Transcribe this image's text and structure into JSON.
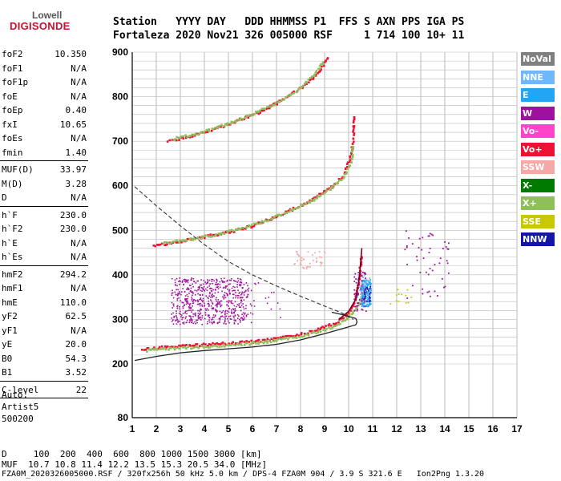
{
  "logo": {
    "top": "Lowell",
    "bottom": "DIGISONDE"
  },
  "header": {
    "line1": "Station   YYYY DAY   DDD HHMMSS P1  FFS S AXN PPS IGA PS",
    "line2": "Fortaleza 2020 Nov21 326 005000 RSF     1 714 100 10+ 11"
  },
  "params_group1": [
    {
      "key": "foF2",
      "value": "10.350"
    },
    {
      "key": "foF1",
      "value": "N/A"
    },
    {
      "key": "foF1p",
      "value": "N/A"
    },
    {
      "key": "foE",
      "value": "N/A"
    },
    {
      "key": "foEp",
      "value": "0.40"
    },
    {
      "key": "fxI",
      "value": "10.65"
    },
    {
      "key": "foEs",
      "value": "N/A"
    },
    {
      "key": "fmin",
      "value": "1.40"
    }
  ],
  "params_group2": [
    {
      "key": "MUF(D)",
      "value": "33.97"
    },
    {
      "key": "M(D)",
      "value": "3.28"
    },
    {
      "key": "D",
      "value": "N/A"
    }
  ],
  "params_group3": [
    {
      "key": "h`F",
      "value": "230.0"
    },
    {
      "key": "h`F2",
      "value": "230.0"
    },
    {
      "key": "h`E",
      "value": "N/A"
    },
    {
      "key": "h`Es",
      "value": "N/A"
    }
  ],
  "params_group4": [
    {
      "key": "hmF2",
      "value": "294.2"
    },
    {
      "key": "hmF1",
      "value": "N/A"
    },
    {
      "key": "hmE",
      "value": "110.0"
    },
    {
      "key": "yF2",
      "value": "62.5"
    },
    {
      "key": "yF1",
      "value": "N/A"
    },
    {
      "key": "yE",
      "value": "20.0"
    },
    {
      "key": "B0",
      "value": "54.3"
    },
    {
      "key": "B1",
      "value": "3.52"
    }
  ],
  "clevel": {
    "key": "C-level",
    "value": "22"
  },
  "auto": {
    "line1": "Auto:",
    "line2": "Artist5",
    "line3": "500200"
  },
  "footer": {
    "d_line": "D     100  200  400  600  800 1000 1500 3000 [km]",
    "muf_line": "MUF  10.7 10.8 11.4 12.2 13.5 15.3 20.5 34.0 [MHz]",
    "file_line": "FZA0M_2020326005000.RSF / 320fx256h 50 kHz 5.0 km / DPS-4 FZA0M 904 / 3.9 S 321.6 E   Ion2Png 1.3.20"
  },
  "legend": [
    {
      "label": "NoVal",
      "color": "#808080"
    },
    {
      "label": "NNE",
      "color": "#6fb7ff"
    },
    {
      "label": "E",
      "color": "#22a5f5"
    },
    {
      "label": "W",
      "color": "#a0109e"
    },
    {
      "label": "Vo-",
      "color": "#ff44cc"
    },
    {
      "label": "Vo+",
      "color": "#ee1133"
    },
    {
      "label": "SSW",
      "color": "#f5a8a8"
    },
    {
      "label": "X-",
      "color": "#007a00"
    },
    {
      "label": "X+",
      "color": "#8fbf5a"
    },
    {
      "label": "SSE",
      "color": "#c8c800"
    },
    {
      "label": "NNW",
      "color": "#1515aa"
    }
  ],
  "chart_data": {
    "type": "scatter",
    "xlim": [
      1,
      17
    ],
    "ylim": [
      80,
      900
    ],
    "x_ticks": [
      1,
      2,
      3,
      4,
      5,
      6,
      7,
      8,
      9,
      10,
      11,
      12,
      13,
      14,
      15,
      16,
      17
    ],
    "y_ticks": [
      80,
      200,
      300,
      400,
      500,
      600,
      700,
      800,
      900
    ],
    "grid": true,
    "legend_placement": "right",
    "traces": [
      {
        "name": "Vo+",
        "color": "#ee1133",
        "points": [
          [
            1.4,
            232
          ],
          [
            2,
            236
          ],
          [
            3,
            240
          ],
          [
            4,
            243
          ],
          [
            5,
            246
          ],
          [
            6,
            250
          ],
          [
            7,
            256
          ],
          [
            8,
            266
          ],
          [
            8.8,
            278
          ],
          [
            9.5,
            292
          ],
          [
            10,
            312
          ],
          [
            10.3,
            345
          ],
          [
            10.45,
            395
          ],
          [
            10.55,
            445
          ]
        ]
      },
      {
        "name": "X+",
        "color": "#8fbf5a",
        "points": [
          [
            1.6,
            230
          ],
          [
            2.5,
            234
          ],
          [
            3.5,
            237
          ],
          [
            4.5,
            240
          ],
          [
            5.5,
            244
          ],
          [
            6.5,
            249
          ],
          [
            7.5,
            257
          ],
          [
            8.5,
            268
          ],
          [
            9.3,
            282
          ],
          [
            9.9,
            300
          ],
          [
            10.35,
            325
          ],
          [
            10.65,
            365
          ]
        ]
      },
      {
        "name": "Vo+",
        "color": "#ee1133",
        "points": [
          [
            1.9,
            465
          ],
          [
            3,
            475
          ],
          [
            4,
            485
          ],
          [
            5,
            495
          ],
          [
            6,
            510
          ],
          [
            7,
            530
          ],
          [
            8,
            555
          ],
          [
            8.8,
            580
          ],
          [
            9.4,
            600
          ],
          [
            9.8,
            625
          ],
          [
            10.05,
            660
          ],
          [
            10.2,
            700
          ],
          [
            10.25,
            760
          ]
        ]
      },
      {
        "name": "X+",
        "color": "#8fbf5a",
        "points": [
          [
            2.3,
            470
          ],
          [
            3.5,
            480
          ],
          [
            4.5,
            490
          ],
          [
            5.5,
            503
          ],
          [
            6.5,
            520
          ],
          [
            7.5,
            542
          ],
          [
            8.5,
            566
          ],
          [
            9.3,
            595
          ],
          [
            9.8,
            618
          ],
          [
            10.1,
            650
          ],
          [
            10.2,
            690
          ]
        ]
      },
      {
        "name": "Vo+",
        "color": "#ee1133",
        "points": [
          [
            2.5,
            700
          ],
          [
            3.5,
            712
          ],
          [
            4.5,
            728
          ],
          [
            5.5,
            748
          ],
          [
            6.5,
            770
          ],
          [
            7.5,
            800
          ],
          [
            8.3,
            830
          ],
          [
            8.9,
            865
          ],
          [
            9.2,
            890
          ]
        ]
      },
      {
        "name": "X+",
        "color": "#8fbf5a",
        "points": [
          [
            2.7,
            705
          ],
          [
            3.8,
            718
          ],
          [
            4.8,
            735
          ],
          [
            5.8,
            756
          ],
          [
            6.8,
            780
          ],
          [
            7.8,
            810
          ],
          [
            8.5,
            845
          ],
          [
            9.0,
            880
          ]
        ]
      }
    ],
    "profile_solid": [
      [
        1.1,
        208
      ],
      [
        2,
        217
      ],
      [
        3,
        225
      ],
      [
        4,
        230
      ],
      [
        5,
        234
      ],
      [
        6,
        238
      ],
      [
        7,
        244
      ],
      [
        8,
        254
      ],
      [
        9,
        268
      ],
      [
        9.8,
        280
      ],
      [
        10.3,
        288
      ],
      [
        10.35,
        294.2
      ],
      [
        10.3,
        302
      ],
      [
        9.8,
        310
      ],
      [
        9.3,
        316
      ]
    ],
    "profile_dashed": [
      [
        1.1,
        598
      ],
      [
        2,
        555
      ],
      [
        3,
        510
      ],
      [
        4,
        468
      ],
      [
        5,
        430
      ],
      [
        6,
        400
      ],
      [
        7,
        375
      ],
      [
        8,
        352
      ],
      [
        9,
        330
      ],
      [
        9.7,
        315
      ],
      [
        10.2,
        300
      ]
    ]
  }
}
